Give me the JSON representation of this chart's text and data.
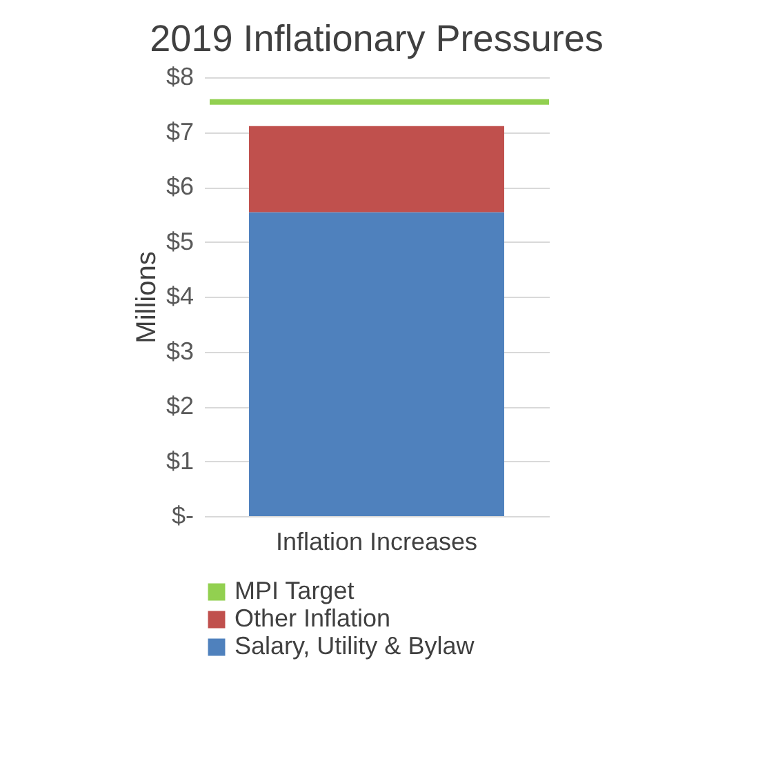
{
  "chart_data": {
    "type": "bar",
    "title": "2019 Inflationary Pressures",
    "ylabel": "Millions",
    "categories": [
      "Inflation Increases"
    ],
    "stacked": true,
    "series": [
      {
        "name": "Salary, Utility & Bylaw",
        "color": "#4f81bd",
        "values": [
          5.54
        ]
      },
      {
        "name": "Other Inflation",
        "color": "#c0504d",
        "values": [
          1.57
        ]
      }
    ],
    "ref_lines": [
      {
        "axis": "y",
        "value": 7.55,
        "label": "MPI Target",
        "color": "#92d050"
      }
    ],
    "ylim": [
      0,
      8
    ],
    "yticks": [
      {
        "value": 0,
        "label": "$-"
      },
      {
        "value": 1,
        "label": "$1"
      },
      {
        "value": 2,
        "label": "$2"
      },
      {
        "value": 3,
        "label": "$3"
      },
      {
        "value": 4,
        "label": "$4"
      },
      {
        "value": 5,
        "label": "$5"
      },
      {
        "value": 6,
        "label": "$6"
      },
      {
        "value": 7,
        "label": "$7"
      },
      {
        "value": 8,
        "label": "$8"
      }
    ],
    "grid": "y",
    "legend": "bottom"
  }
}
